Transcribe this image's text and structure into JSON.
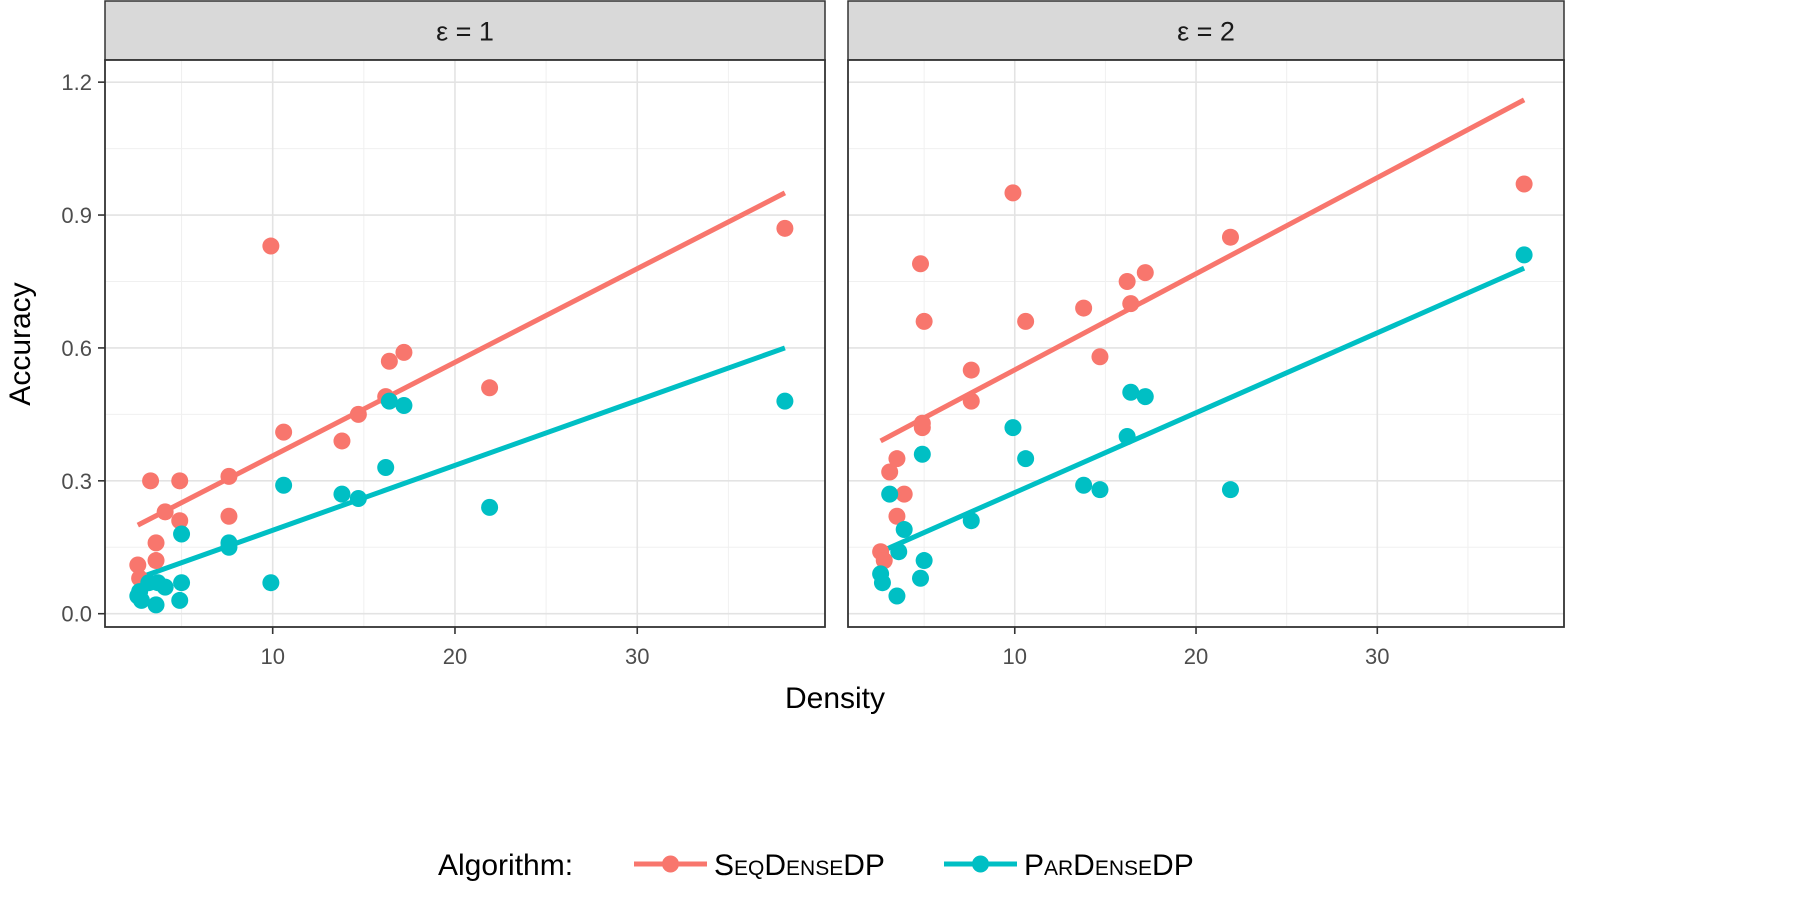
{
  "chart_data": {
    "type": "scatter",
    "title": "",
    "xlabel": "Density",
    "ylabel": "Accuracy",
    "xlim": [
      0.8,
      40.3
    ],
    "ylim": [
      -0.03,
      1.25
    ],
    "x_ticks": [
      10,
      20,
      30
    ],
    "y_ticks": [
      0.0,
      0.3,
      0.6,
      0.9,
      1.2
    ],
    "y_tick_labels": [
      "0.0",
      "0.3",
      "0.6",
      "0.9",
      "1.2"
    ],
    "grid": true,
    "legend": {
      "title": "Algorithm:",
      "position": "bottom",
      "entries": [
        "SeqDenseDP",
        "ParDenseDP"
      ]
    },
    "series": [
      {
        "name": "SeqDenseDP",
        "color": "#F8766D"
      },
      {
        "name": "ParDenseDP",
        "color": "#00BFC4"
      }
    ],
    "panels": [
      {
        "label": "ε = 1",
        "points": {
          "SeqDenseDP": [
            [
              2.6,
              0.11
            ],
            [
              2.7,
              0.08
            ],
            [
              3.3,
              0.3
            ],
            [
              3.6,
              0.16
            ],
            [
              3.6,
              0.12
            ],
            [
              4.1,
              0.23
            ],
            [
              4.9,
              0.3
            ],
            [
              4.9,
              0.21
            ],
            [
              7.6,
              0.31
            ],
            [
              7.6,
              0.22
            ],
            [
              9.9,
              0.83
            ],
            [
              10.6,
              0.41
            ],
            [
              13.8,
              0.39
            ],
            [
              14.7,
              0.45
            ],
            [
              16.2,
              0.49
            ],
            [
              16.4,
              0.57
            ],
            [
              17.2,
              0.59
            ],
            [
              21.9,
              0.51
            ],
            [
              38.1,
              0.87
            ]
          ],
          "ParDenseDP": [
            [
              2.6,
              0.04
            ],
            [
              2.7,
              0.05
            ],
            [
              2.8,
              0.03
            ],
            [
              3.2,
              0.07
            ],
            [
              3.6,
              0.02
            ],
            [
              3.7,
              0.07
            ],
            [
              4.1,
              0.06
            ],
            [
              4.9,
              0.03
            ],
            [
              5.0,
              0.18
            ],
            [
              5.0,
              0.07
            ],
            [
              7.6,
              0.16
            ],
            [
              7.6,
              0.15
            ],
            [
              9.9,
              0.07
            ],
            [
              10.6,
              0.29
            ],
            [
              13.8,
              0.27
            ],
            [
              14.7,
              0.26
            ],
            [
              16.2,
              0.33
            ],
            [
              16.4,
              0.48
            ],
            [
              17.2,
              0.47
            ],
            [
              21.9,
              0.24
            ],
            [
              38.1,
              0.48
            ]
          ]
        },
        "fits": {
          "SeqDenseDP": {
            "x": [
              2.6,
              38.1
            ],
            "y": [
              0.2,
              0.95
            ]
          },
          "ParDenseDP": {
            "x": [
              2.6,
              38.1
            ],
            "y": [
              0.08,
              0.6
            ]
          }
        }
      },
      {
        "label": "ε = 2",
        "points": {
          "SeqDenseDP": [
            [
              2.6,
              0.14
            ],
            [
              2.8,
              0.12
            ],
            [
              3.1,
              0.32
            ],
            [
              3.5,
              0.35
            ],
            [
              3.5,
              0.22
            ],
            [
              3.9,
              0.27
            ],
            [
              4.8,
              0.79
            ],
            [
              4.9,
              0.43
            ],
            [
              4.9,
              0.42
            ],
            [
              5.0,
              0.66
            ],
            [
              7.6,
              0.55
            ],
            [
              7.6,
              0.48
            ],
            [
              9.9,
              0.95
            ],
            [
              10.6,
              0.66
            ],
            [
              13.8,
              0.69
            ],
            [
              14.7,
              0.58
            ],
            [
              16.2,
              0.75
            ],
            [
              16.4,
              0.7
            ],
            [
              17.2,
              0.77
            ],
            [
              21.9,
              0.85
            ],
            [
              38.1,
              0.97
            ]
          ],
          "ParDenseDP": [
            [
              2.6,
              0.09
            ],
            [
              2.7,
              0.07
            ],
            [
              3.1,
              0.27
            ],
            [
              3.5,
              0.04
            ],
            [
              3.6,
              0.14
            ],
            [
              3.9,
              0.19
            ],
            [
              4.8,
              0.08
            ],
            [
              4.9,
              0.36
            ],
            [
              5.0,
              0.12
            ],
            [
              7.6,
              0.21
            ],
            [
              9.9,
              0.42
            ],
            [
              10.6,
              0.35
            ],
            [
              13.8,
              0.29
            ],
            [
              14.7,
              0.28
            ],
            [
              16.2,
              0.4
            ],
            [
              16.4,
              0.5
            ],
            [
              17.2,
              0.49
            ],
            [
              21.9,
              0.28
            ],
            [
              38.1,
              0.81
            ]
          ]
        },
        "fits": {
          "SeqDenseDP": {
            "x": [
              2.6,
              38.1
            ],
            "y": [
              0.39,
              1.16
            ]
          },
          "ParDenseDP": {
            "x": [
              2.6,
              38.1
            ],
            "y": [
              0.14,
              0.78
            ]
          }
        }
      }
    ]
  }
}
